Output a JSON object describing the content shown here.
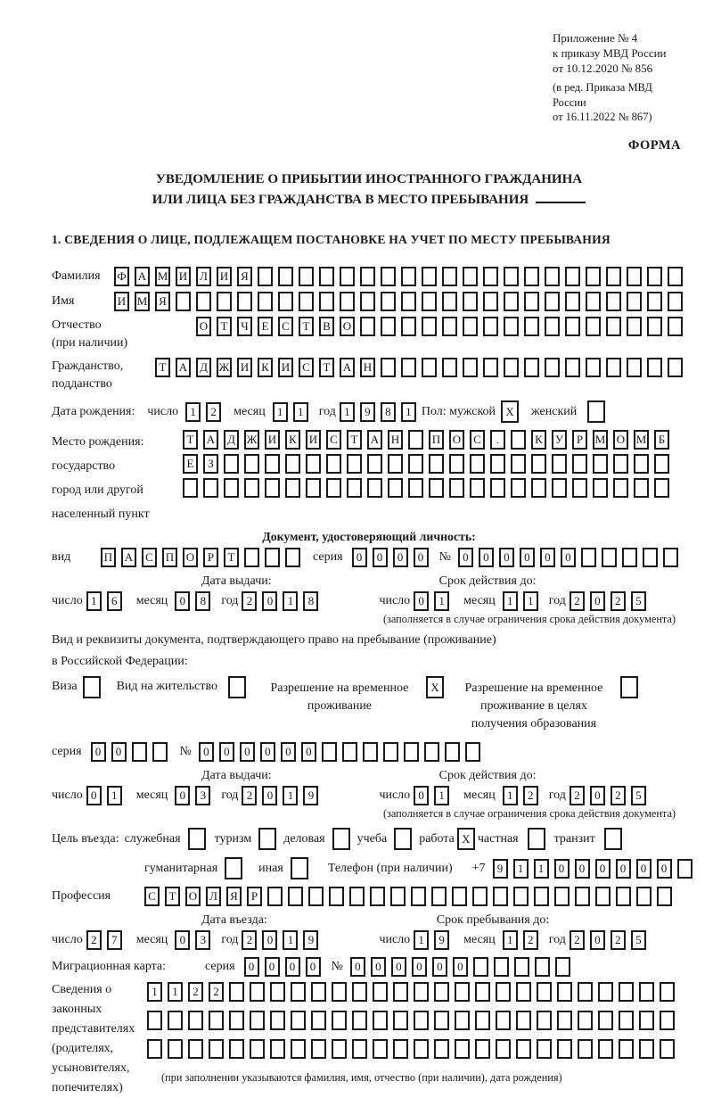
{
  "colors": {
    "ink": "#1a1a1a",
    "paper": "#ffffff"
  },
  "header": {
    "annex1": "Приложение № 4",
    "annex2": "к приказу МВД России",
    "annex3": "от 10.12.2020 № 856",
    "annex_note1": "(в ред. Приказа МВД России",
    "annex_note2": "от 16.11.2022 № 867)",
    "forma": "ФОРМА",
    "title1": "УВЕДОМЛЕНИЕ О ПРИБЫТИИ ИНОСТРАННОГО ГРАЖДАНИНА",
    "title2": "ИЛИ ЛИЦА БЕЗ ГРАЖДАНСТВА В МЕСТО ПРЕБЫВАНИЯ",
    "section1": "1. СВЕДЕНИЯ О ЛИЦЕ, ПОДЛЕЖАЩЕМ ПОСТАНОВКЕ НА УЧЕТ ПО МЕСТУ ПРЕБЫВАНИЯ"
  },
  "labels": {
    "surname": "Фамилия",
    "name": "Имя",
    "patronymic": "Отчество",
    "patronymic_note": "(при наличии)",
    "citizenship1": "Гражданство,",
    "citizenship2": "подданство",
    "birth_date": "Дата рождения:",
    "day": "число",
    "month": "месяц",
    "year": "год",
    "sex": "Пол: мужской",
    "female": "женский",
    "birthplace1": "Место рождения:",
    "birthplace2": "государство",
    "birthplace3": "город или другой",
    "birthplace4": "населенный пункт",
    "identity_doc": "Документ, удостоверяющий личность:",
    "kind": "вид",
    "series": "серия",
    "number": "№",
    "issue_date": "Дата выдачи:",
    "valid_until": "Срок действия до:",
    "valid_note": "(заполняется в случае ограничения срока действия документа)",
    "right_doc1": "Вид и реквизиты документа, подтверждающего право на пребывание (проживание)",
    "right_doc2": "в Российской Федерации:",
    "visa": "Виза",
    "residence_permit": "Вид на жительство",
    "temp_permit1": "Разрешение на временное",
    "temp_permit2": "проживание",
    "temp_edu1": "Разрешение на временное",
    "temp_edu2": "проживание в целях",
    "temp_edu3": "получения образования",
    "purpose": "Цель въезда:",
    "p_official": "служебная",
    "p_tourism": "туризм",
    "p_business": "деловая",
    "p_study": "учеба",
    "p_work": "работа",
    "p_private": "частная",
    "p_transit": "транзит",
    "p_humanitarian": "гуманитарная",
    "p_other": "иная",
    "phone": "Телефон (при наличии)",
    "phone_prefix": "+7",
    "profession": "Профессия",
    "entry_date": "Дата въезда:",
    "stay_until": "Срок пребывания до:",
    "reps1": "Сведения о",
    "reps2": "законных",
    "reps3": "представителях",
    "reps4": "(родителях,",
    "reps5": "усыновителях,",
    "reps6": "попечителях)",
    "migration_card": "Миграционная карта:",
    "reps_note": "(при заполнении указываются фамилия, имя, отчество (при наличии), дата рождения)"
  },
  "fields": {
    "surname": {
      "chars": "ФАМИЛИЯ",
      "n": 28
    },
    "name": {
      "chars": "ИМЯ",
      "n": 28
    },
    "patronymic": {
      "chars": "ОТЧЕСТВО",
      "n": 24
    },
    "citizenship": {
      "chars": "ТАДЖИКИСТАН",
      "n": 26
    },
    "birth_day": {
      "chars": "12",
      "n": 2
    },
    "birth_month": {
      "chars": "11",
      "n": 2
    },
    "birth_year": {
      "chars": "1981",
      "n": 4
    },
    "sex_male": {
      "chars": "X",
      "n": 1
    },
    "sex_female": {
      "chars": "",
      "n": 1
    },
    "birthplace1": {
      "chars": "ТАДЖИКИСТАН ПОС. КУРМОМБ",
      "n": 24
    },
    "birthplace2": {
      "chars": "ЕЗ",
      "n": 24
    },
    "birthplace3": {
      "chars": "",
      "n": 24
    },
    "doc_kind": {
      "chars": "ПАСПОРТ",
      "n": 10
    },
    "doc_series": {
      "chars": "0000",
      "n": 4
    },
    "doc_number": {
      "chars": "000000",
      "n": 11
    },
    "doc_issue_day": {
      "chars": "16",
      "n": 2
    },
    "doc_issue_month": {
      "chars": "08",
      "n": 2
    },
    "doc_issue_year": {
      "chars": "2018",
      "n": 4
    },
    "doc_valid_day": {
      "chars": "01",
      "n": 2
    },
    "doc_valid_month": {
      "chars": "11",
      "n": 2
    },
    "doc_valid_year": {
      "chars": "2025",
      "n": 4
    },
    "visa_cb": {
      "chars": "",
      "n": 1
    },
    "residence_permit_cb": {
      "chars": "",
      "n": 1
    },
    "temp_permit_cb": {
      "chars": "X",
      "n": 1
    },
    "temp_edu_cb": {
      "chars": "",
      "n": 1
    },
    "permit_series": {
      "chars": "00",
      "n": 4
    },
    "permit_number": {
      "chars": "000000",
      "n": 14
    },
    "permit_issue_day": {
      "chars": "01",
      "n": 2
    },
    "permit_issue_month": {
      "chars": "03",
      "n": 2
    },
    "permit_issue_year": {
      "chars": "2019",
      "n": 4
    },
    "permit_valid_day": {
      "chars": "01",
      "n": 2
    },
    "permit_valid_month": {
      "chars": "12",
      "n": 2
    },
    "permit_valid_year": {
      "chars": "2025",
      "n": 4
    },
    "p_official_cb": {
      "chars": "",
      "n": 1
    },
    "p_tourism_cb": {
      "chars": "",
      "n": 1
    },
    "p_business_cb": {
      "chars": "",
      "n": 1
    },
    "p_study_cb": {
      "chars": "",
      "n": 1
    },
    "p_work_cb": {
      "chars": "X",
      "n": 1
    },
    "p_private_cb": {
      "chars": "",
      "n": 1
    },
    "p_transit_cb": {
      "chars": "",
      "n": 1
    },
    "p_humanitarian_cb": {
      "chars": "",
      "n": 1
    },
    "p_other_cb": {
      "chars": "",
      "n": 1
    },
    "phone": {
      "chars": "911000000",
      "n": 10
    },
    "profession": {
      "chars": "СТОЛЯР",
      "n": 26
    },
    "entry_day": {
      "chars": "27",
      "n": 2
    },
    "entry_month": {
      "chars": "03",
      "n": 2
    },
    "entry_year": {
      "chars": "2019",
      "n": 4
    },
    "stay_day": {
      "chars": "19",
      "n": 2
    },
    "stay_month": {
      "chars": "12",
      "n": 2
    },
    "stay_year": {
      "chars": "2025",
      "n": 4
    },
    "mig_series": {
      "chars": "0000",
      "n": 4
    },
    "mig_number": {
      "chars": "000000",
      "n": 11
    },
    "reps_row1": {
      "chars": "1122",
      "n": 26
    },
    "reps_row2": {
      "chars": "",
      "n": 26
    },
    "reps_row3": {
      "chars": "",
      "n": 26
    }
  }
}
